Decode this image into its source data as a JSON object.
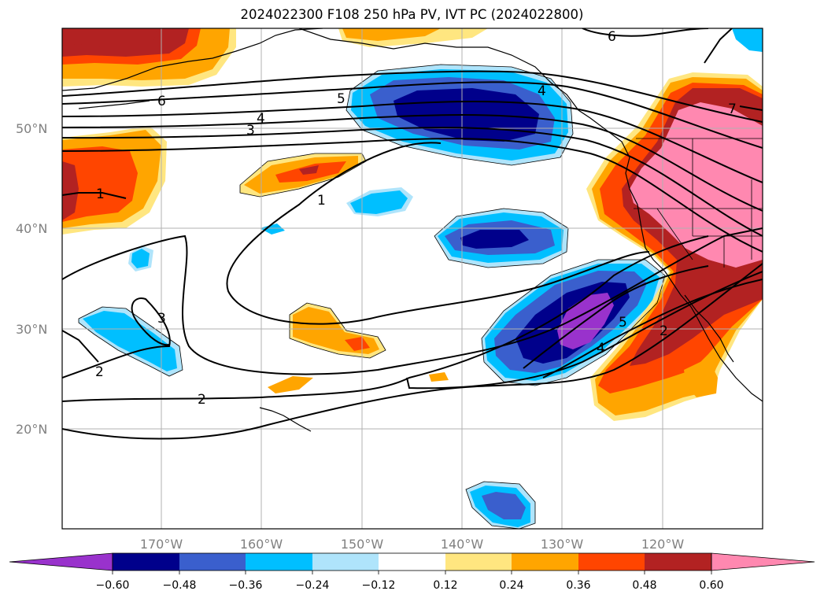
{
  "title": "2024022300 F108 250 hPa PV, IVT PC (2024022800)",
  "lat_labels": [
    "50°N",
    "40°N",
    "30°N",
    "20°N"
  ],
  "lon_labels": [
    "170°W",
    "160°W",
    "150°W",
    "140°W",
    "130°W",
    "120°W"
  ],
  "contour_labels": [
    "6",
    "5",
    "4",
    "3",
    "1",
    "1",
    "3",
    "2",
    "2",
    "4",
    "5",
    "2",
    "7",
    "6",
    "4"
  ],
  "colorbar": {
    "ticks": [
      "−0.60",
      "−0.48",
      "−0.36",
      "−0.24",
      "−0.12",
      "0.12",
      "0.24",
      "0.36",
      "0.48",
      "0.60"
    ],
    "colors": [
      "#9932cc",
      "#00008b",
      "#3a5fcd",
      "#00bfff",
      "#afe4fb",
      "#ffffff",
      "#ffe680",
      "#ffa500",
      "#ff4500",
      "#b22222",
      "#ff88b0"
    ]
  }
}
